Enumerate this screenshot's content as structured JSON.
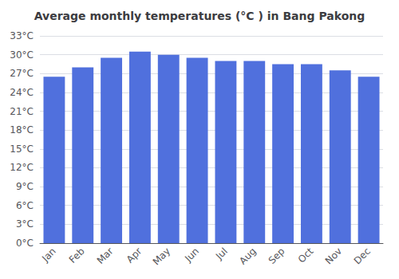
{
  "chart_data": {
    "type": "bar",
    "title": "Average monthly temperatures (°C ) in Bang Pakong",
    "categories": [
      "Jan",
      "Feb",
      "Mar",
      "Apr",
      "May",
      "Jun",
      "Jul",
      "Aug",
      "Sep",
      "Oct",
      "Nov",
      "Dec"
    ],
    "values": [
      26.5,
      28.0,
      29.5,
      30.5,
      30.0,
      29.5,
      29.0,
      29.0,
      28.5,
      28.5,
      27.5,
      26.5
    ],
    "ylim": [
      0,
      33
    ],
    "yticks": [
      {
        "value": 0,
        "label": "0°C"
      },
      {
        "value": 3,
        "label": "3°C"
      },
      {
        "value": 6,
        "label": "6°C"
      },
      {
        "value": 9,
        "label": "9°C"
      },
      {
        "value": 12,
        "label": "12°C"
      },
      {
        "value": 15,
        "label": "15°C"
      },
      {
        "value": 18,
        "label": "18°C"
      },
      {
        "value": 21,
        "label": "21°C"
      },
      {
        "value": 24,
        "label": "24°C"
      },
      {
        "value": 27,
        "label": "27°C"
      },
      {
        "value": 30,
        "label": "30°C"
      },
      {
        "value": 33,
        "label": "33°C"
      }
    ],
    "grid": true
  }
}
